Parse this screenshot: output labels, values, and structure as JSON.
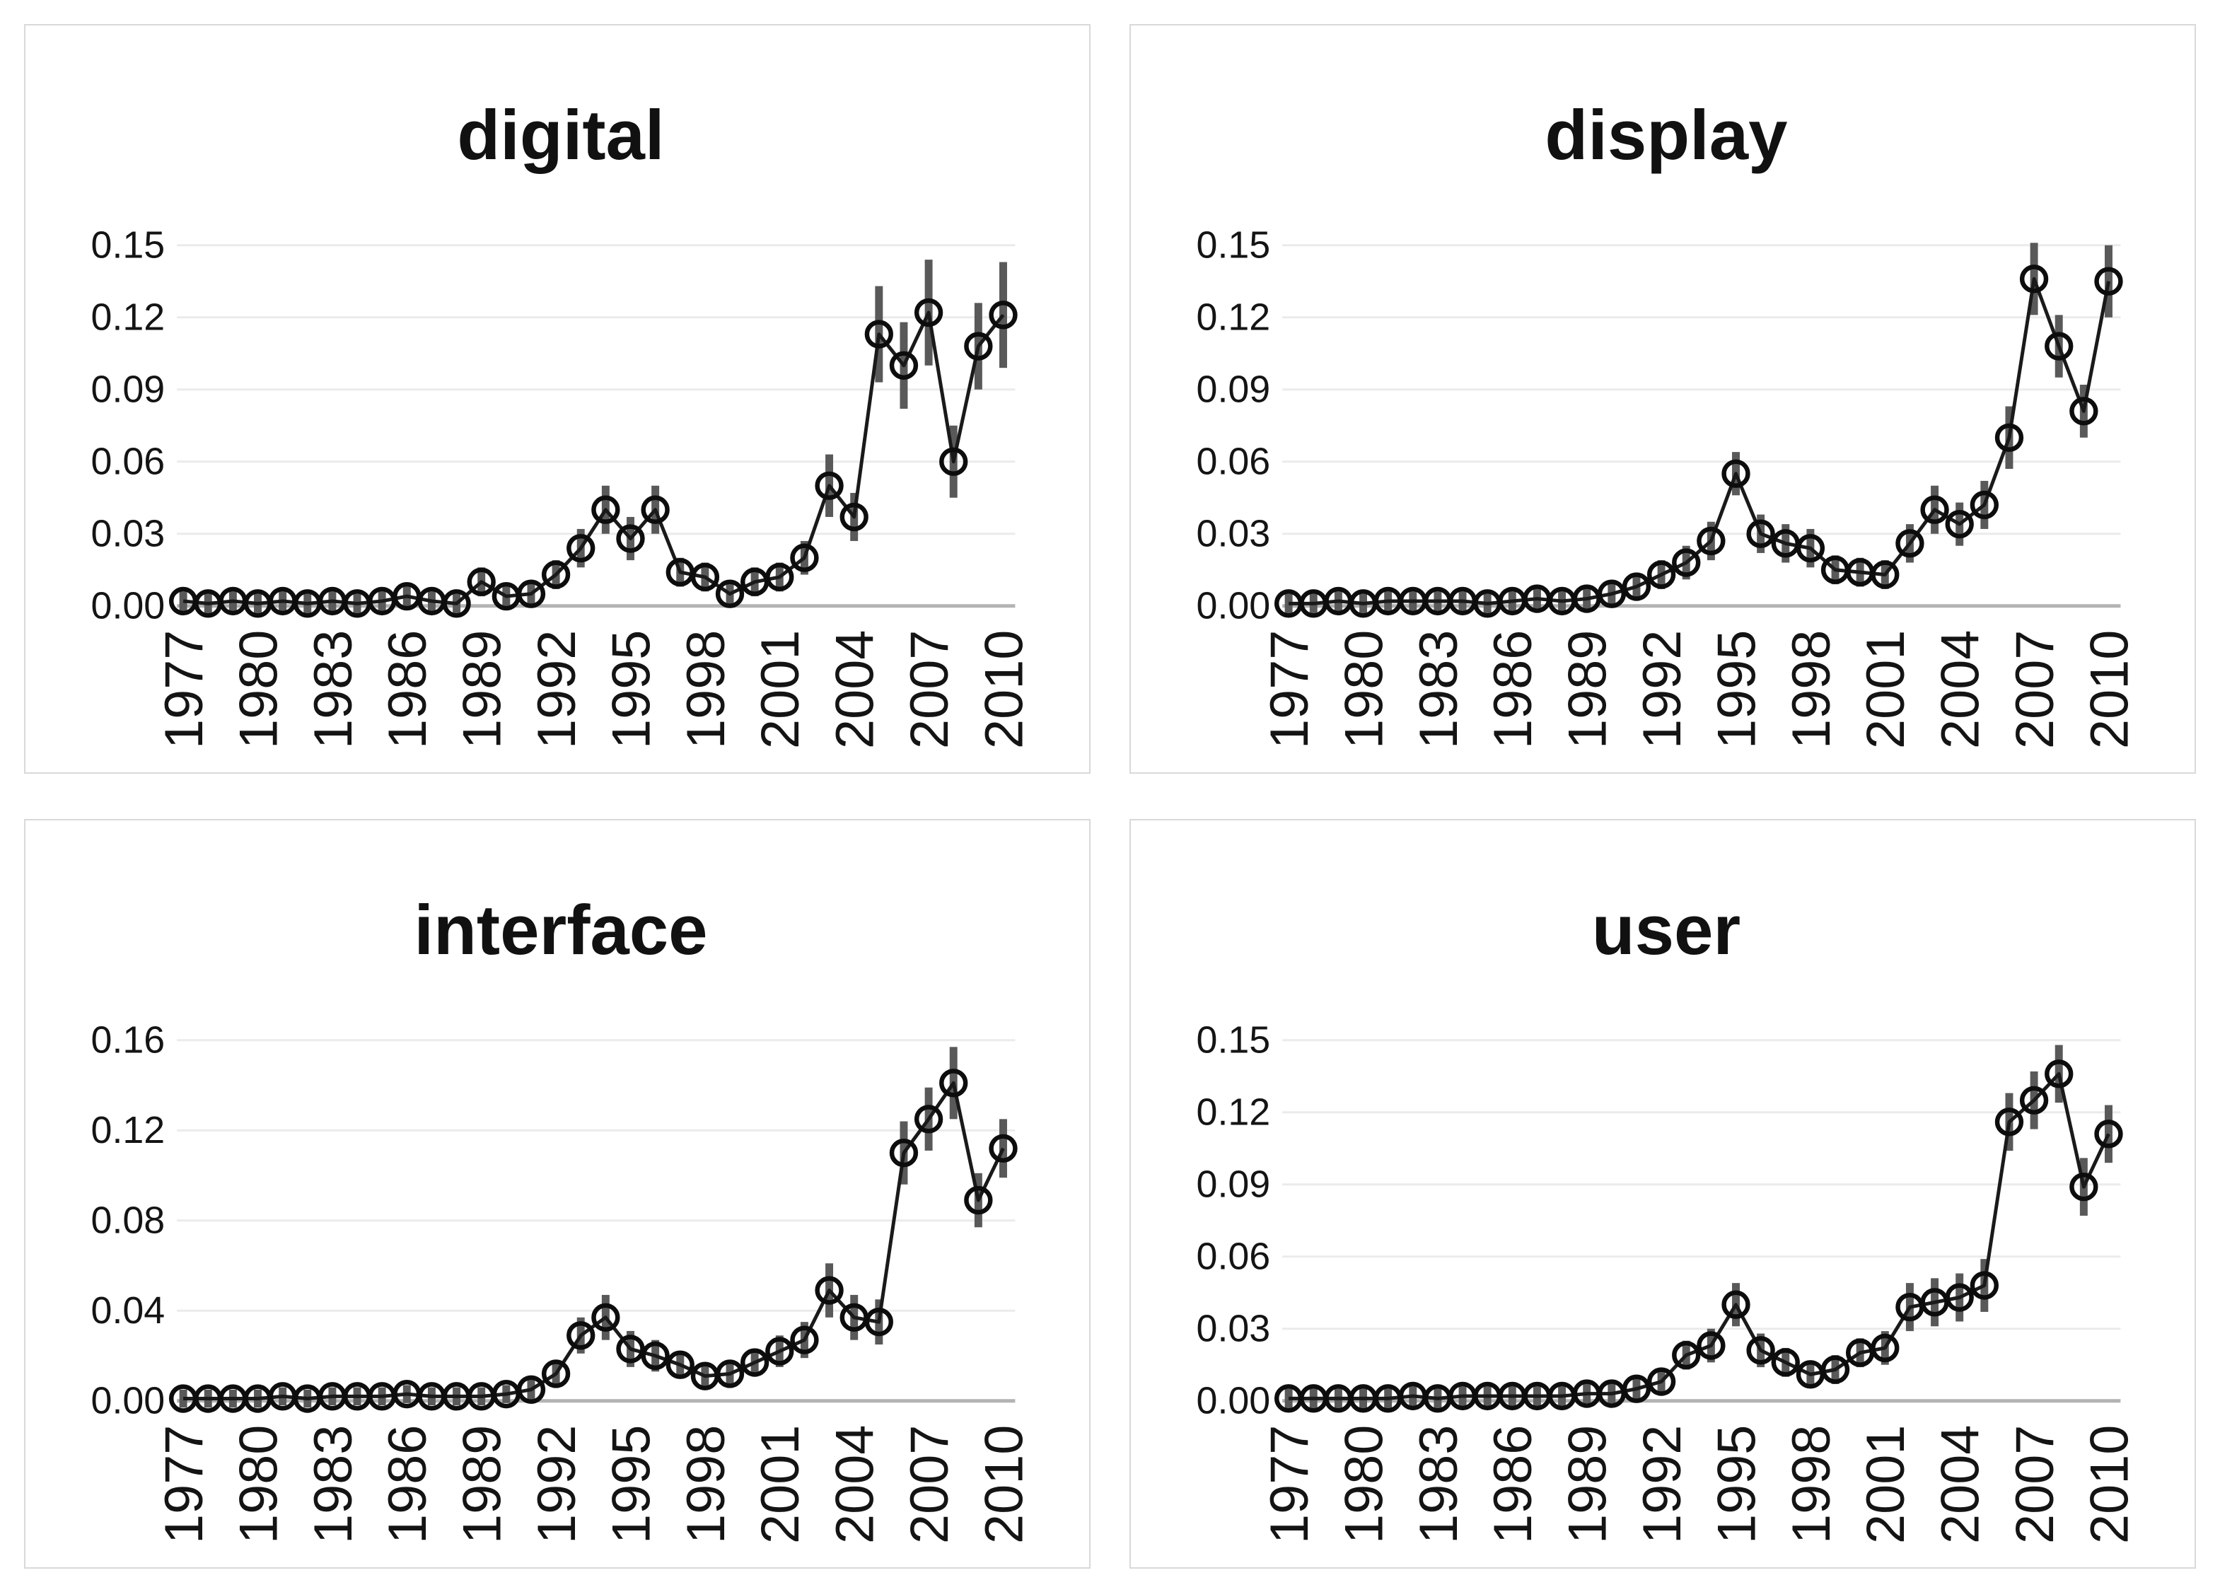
{
  "style": {
    "background": "#ffffff",
    "panel_border_color": "#d9d9d9",
    "text_color": "#141414",
    "line_color": "#1a1a1a",
    "marker_color": "#0d0d0d",
    "error_bar_color": "#595959",
    "gridline_color": "#ebebeb",
    "zero_axis_color": "#b3b3b3"
  },
  "chart_data": [
    {
      "type": "line",
      "title": "digital",
      "xlabel": "",
      "ylabel": "",
      "x": [
        1977,
        1978,
        1979,
        1980,
        1981,
        1982,
        1983,
        1984,
        1985,
        1986,
        1987,
        1988,
        1989,
        1990,
        1991,
        1992,
        1993,
        1994,
        1995,
        1996,
        1997,
        1998,
        1999,
        2000,
        2001,
        2002,
        2003,
        2004,
        2005,
        2006,
        2007,
        2008,
        2009,
        2010
      ],
      "x_tick_labels": [
        "1977",
        "1980",
        "1983",
        "1986",
        "1989",
        "1992",
        "1995",
        "1998",
        "2001",
        "2004",
        "2007",
        "2010"
      ],
      "x_tick_step": 3,
      "y_ticks": [
        "0.00",
        "0.03",
        "0.06",
        "0.09",
        "0.12",
        "0.15"
      ],
      "y_axis_max": 0.15,
      "grid": true,
      "legend": false,
      "marker": "open-circle",
      "error_bars": true,
      "series": [
        {
          "name": "digital",
          "values": [
            0.002,
            0.001,
            0.002,
            0.001,
            0.002,
            0.001,
            0.002,
            0.001,
            0.002,
            0.004,
            0.002,
            0.001,
            0.01,
            0.004,
            0.005,
            0.013,
            0.024,
            0.04,
            0.028,
            0.04,
            0.014,
            0.012,
            0.005,
            0.01,
            0.012,
            0.02,
            0.05,
            0.037,
            0.113,
            0.1,
            0.122,
            0.06,
            0.108,
            0.121
          ],
          "errors": [
            0.004,
            0.004,
            0.004,
            0.004,
            0.004,
            0.004,
            0.004,
            0.004,
            0.004,
            0.005,
            0.004,
            0.004,
            0.006,
            0.005,
            0.005,
            0.006,
            0.008,
            0.01,
            0.009,
            0.01,
            0.006,
            0.006,
            0.005,
            0.006,
            0.006,
            0.007,
            0.013,
            0.01,
            0.02,
            0.018,
            0.022,
            0.015,
            0.018,
            0.022
          ]
        }
      ]
    },
    {
      "type": "line",
      "title": "display",
      "xlabel": "",
      "ylabel": "",
      "x": [
        1977,
        1978,
        1979,
        1980,
        1981,
        1982,
        1983,
        1984,
        1985,
        1986,
        1987,
        1988,
        1989,
        1990,
        1991,
        1992,
        1993,
        1994,
        1995,
        1996,
        1997,
        1998,
        1999,
        2000,
        2001,
        2002,
        2003,
        2004,
        2005,
        2006,
        2007,
        2008,
        2009,
        2010
      ],
      "x_tick_labels": [
        "1977",
        "1980",
        "1983",
        "1986",
        "1989",
        "1992",
        "1995",
        "1998",
        "2001",
        "2004",
        "2007",
        "2010"
      ],
      "x_tick_step": 3,
      "y_ticks": [
        "0.00",
        "0.03",
        "0.06",
        "0.09",
        "0.12",
        "0.15"
      ],
      "y_axis_max": 0.15,
      "grid": true,
      "legend": false,
      "marker": "open-circle",
      "error_bars": true,
      "series": [
        {
          "name": "display",
          "values": [
            0.001,
            0.001,
            0.002,
            0.001,
            0.002,
            0.002,
            0.002,
            0.002,
            0.001,
            0.002,
            0.003,
            0.002,
            0.003,
            0.005,
            0.008,
            0.013,
            0.018,
            0.027,
            0.055,
            0.03,
            0.026,
            0.024,
            0.015,
            0.014,
            0.013,
            0.026,
            0.04,
            0.034,
            0.042,
            0.07,
            0.136,
            0.108,
            0.081,
            0.135
          ],
          "errors": [
            0.004,
            0.004,
            0.004,
            0.004,
            0.004,
            0.004,
            0.004,
            0.004,
            0.004,
            0.004,
            0.004,
            0.004,
            0.004,
            0.005,
            0.005,
            0.006,
            0.007,
            0.008,
            0.009,
            0.008,
            0.008,
            0.008,
            0.006,
            0.006,
            0.006,
            0.008,
            0.01,
            0.009,
            0.01,
            0.013,
            0.015,
            0.013,
            0.011,
            0.015
          ]
        }
      ]
    },
    {
      "type": "line",
      "title": "interface",
      "xlabel": "",
      "ylabel": "",
      "x": [
        1977,
        1978,
        1979,
        1980,
        1981,
        1982,
        1983,
        1984,
        1985,
        1986,
        1987,
        1988,
        1989,
        1990,
        1991,
        1992,
        1993,
        1994,
        1995,
        1996,
        1997,
        1998,
        1999,
        2000,
        2001,
        2002,
        2003,
        2004,
        2005,
        2006,
        2007,
        2008,
        2009,
        2010
      ],
      "x_tick_labels": [
        "1977",
        "1980",
        "1983",
        "1986",
        "1989",
        "1992",
        "1995",
        "1998",
        "2001",
        "2004",
        "2007",
        "2010"
      ],
      "x_tick_step": 3,
      "y_ticks": [
        "0.00",
        "0.04",
        "0.08",
        "0.12",
        "0.16"
      ],
      "y_axis_max": 0.16,
      "grid": true,
      "legend": false,
      "marker": "open-circle",
      "error_bars": true,
      "series": [
        {
          "name": "interface",
          "values": [
            0.001,
            0.001,
            0.001,
            0.001,
            0.002,
            0.001,
            0.002,
            0.002,
            0.002,
            0.003,
            0.002,
            0.002,
            0.002,
            0.003,
            0.005,
            0.012,
            0.029,
            0.037,
            0.023,
            0.02,
            0.016,
            0.011,
            0.012,
            0.017,
            0.022,
            0.027,
            0.049,
            0.037,
            0.035,
            0.11,
            0.125,
            0.141,
            0.089,
            0.112
          ],
          "errors": [
            0.004,
            0.004,
            0.004,
            0.004,
            0.004,
            0.004,
            0.004,
            0.004,
            0.004,
            0.004,
            0.004,
            0.004,
            0.004,
            0.004,
            0.005,
            0.006,
            0.008,
            0.01,
            0.008,
            0.007,
            0.006,
            0.005,
            0.006,
            0.006,
            0.007,
            0.008,
            0.012,
            0.01,
            0.01,
            0.014,
            0.014,
            0.016,
            0.012,
            0.013
          ]
        }
      ]
    },
    {
      "type": "line",
      "title": "user",
      "xlabel": "",
      "ylabel": "",
      "x": [
        1977,
        1978,
        1979,
        1980,
        1981,
        1982,
        1983,
        1984,
        1985,
        1986,
        1987,
        1988,
        1989,
        1990,
        1991,
        1992,
        1993,
        1994,
        1995,
        1996,
        1997,
        1998,
        1999,
        2000,
        2001,
        2002,
        2003,
        2004,
        2005,
        2006,
        2007,
        2008,
        2009,
        2010
      ],
      "x_tick_labels": [
        "1977",
        "1980",
        "1983",
        "1986",
        "1989",
        "1992",
        "1995",
        "1998",
        "2001",
        "2004",
        "2007",
        "2010"
      ],
      "x_tick_step": 3,
      "y_ticks": [
        "0.00",
        "0.03",
        "0.06",
        "0.09",
        "0.12",
        "0.15"
      ],
      "y_axis_max": 0.15,
      "grid": true,
      "legend": false,
      "marker": "open-circle",
      "error_bars": true,
      "series": [
        {
          "name": "user",
          "values": [
            0.001,
            0.001,
            0.001,
            0.001,
            0.001,
            0.002,
            0.001,
            0.002,
            0.002,
            0.002,
            0.002,
            0.002,
            0.003,
            0.003,
            0.005,
            0.008,
            0.019,
            0.023,
            0.04,
            0.021,
            0.016,
            0.011,
            0.013,
            0.02,
            0.022,
            0.039,
            0.041,
            0.043,
            0.048,
            0.116,
            0.125,
            0.136,
            0.089,
            0.111
          ],
          "errors": [
            0.004,
            0.004,
            0.004,
            0.004,
            0.004,
            0.004,
            0.004,
            0.004,
            0.004,
            0.004,
            0.004,
            0.004,
            0.004,
            0.004,
            0.005,
            0.005,
            0.006,
            0.007,
            0.009,
            0.007,
            0.006,
            0.005,
            0.006,
            0.006,
            0.007,
            0.01,
            0.01,
            0.01,
            0.011,
            0.012,
            0.012,
            0.012,
            0.012,
            0.012
          ]
        }
      ]
    }
  ]
}
